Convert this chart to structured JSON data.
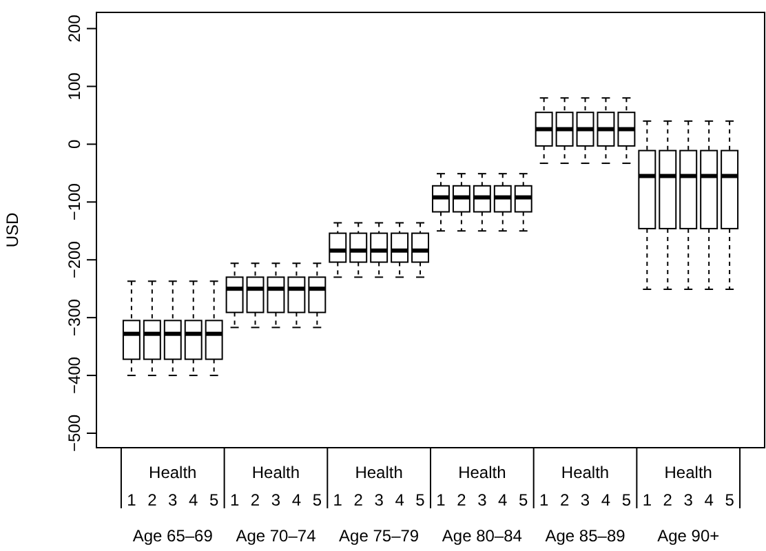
{
  "chart_data": {
    "type": "box",
    "ylabel": "USD",
    "ylim": [
      -525,
      228
    ],
    "yticks": [
      -500,
      -400,
      -300,
      -200,
      -100,
      0,
      100,
      200
    ],
    "categories": [
      "1",
      "2",
      "3",
      "4",
      "5",
      "1",
      "2",
      "3",
      "4",
      "5",
      "1",
      "2",
      "3",
      "4",
      "5",
      "1",
      "2",
      "3",
      "4",
      "5",
      "1",
      "2",
      "3",
      "4",
      "5",
      "1",
      "2",
      "3",
      "4",
      "5"
    ],
    "annotations": [
      "Health",
      "Health",
      "Health",
      "Health",
      "Health",
      "Health",
      "Age 65–69",
      "Age 70–74",
      "Age 75–79",
      "Age 80–84",
      "Age 85–89",
      "Age 90+"
    ],
    "boxes": [
      {
        "low": -400,
        "q1": -372,
        "median": -328,
        "q3": -305,
        "high": -237
      },
      {
        "low": -400,
        "q1": -372,
        "median": -328,
        "q3": -305,
        "high": -237
      },
      {
        "low": -400,
        "q1": -372,
        "median": -328,
        "q3": -305,
        "high": -237
      },
      {
        "low": -400,
        "q1": -372,
        "median": -328,
        "q3": -305,
        "high": -237
      },
      {
        "low": -400,
        "q1": -372,
        "median": -328,
        "q3": -305,
        "high": -237
      },
      {
        "low": -317,
        "q1": -291,
        "median": -250,
        "q3": -230,
        "high": -206
      },
      {
        "low": -317,
        "q1": -291,
        "median": -250,
        "q3": -230,
        "high": -206
      },
      {
        "low": -317,
        "q1": -291,
        "median": -250,
        "q3": -230,
        "high": -206
      },
      {
        "low": -317,
        "q1": -291,
        "median": -250,
        "q3": -230,
        "high": -206
      },
      {
        "low": -317,
        "q1": -291,
        "median": -250,
        "q3": -230,
        "high": -206
      },
      {
        "low": -230,
        "q1": -204,
        "median": -184,
        "q3": -154,
        "high": -136
      },
      {
        "low": -230,
        "q1": -204,
        "median": -184,
        "q3": -154,
        "high": -136
      },
      {
        "low": -230,
        "q1": -204,
        "median": -184,
        "q3": -154,
        "high": -136
      },
      {
        "low": -230,
        "q1": -204,
        "median": -184,
        "q3": -154,
        "high": -136
      },
      {
        "low": -230,
        "q1": -204,
        "median": -184,
        "q3": -154,
        "high": -136
      },
      {
        "low": -150,
        "q1": -117,
        "median": -92,
        "q3": -72,
        "high": -51
      },
      {
        "low": -150,
        "q1": -117,
        "median": -92,
        "q3": -72,
        "high": -51
      },
      {
        "low": -150,
        "q1": -117,
        "median": -92,
        "q3": -72,
        "high": -51
      },
      {
        "low": -150,
        "q1": -117,
        "median": -92,
        "q3": -72,
        "high": -51
      },
      {
        "low": -150,
        "q1": -117,
        "median": -92,
        "q3": -72,
        "high": -51
      },
      {
        "low": -33,
        "q1": -3,
        "median": 26,
        "q3": 55,
        "high": 80
      },
      {
        "low": -33,
        "q1": -3,
        "median": 26,
        "q3": 55,
        "high": 80
      },
      {
        "low": -33,
        "q1": -3,
        "median": 26,
        "q3": 55,
        "high": 80
      },
      {
        "low": -33,
        "q1": -3,
        "median": 26,
        "q3": 55,
        "high": 80
      },
      {
        "low": -33,
        "q1": -3,
        "median": 26,
        "q3": 55,
        "high": 80
      },
      {
        "low": -251,
        "q1": -146,
        "median": -55,
        "q3": -11,
        "high": 40
      },
      {
        "low": -251,
        "q1": -146,
        "median": -55,
        "q3": -11,
        "high": 40
      },
      {
        "low": -251,
        "q1": -146,
        "median": -55,
        "q3": -11,
        "high": 40
      },
      {
        "low": -251,
        "q1": -146,
        "median": -55,
        "q3": -11,
        "high": 40
      },
      {
        "low": -251,
        "q1": -146,
        "median": -55,
        "q3": -11,
        "high": 40
      }
    ]
  }
}
